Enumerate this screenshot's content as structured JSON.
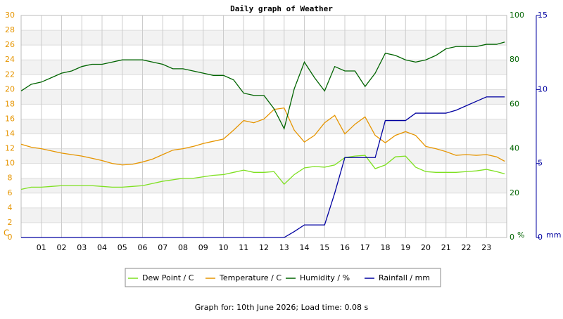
{
  "chart_data": {
    "type": "line",
    "title": "Daily graph of Weather",
    "footer": "Graph for: 10th June 2026; Load time: 0.08 s",
    "y_label": "C",
    "y2_label": "%",
    "y3_label": "mm",
    "x": [
      0,
      0.5,
      1,
      1.5,
      2,
      2.5,
      3,
      3.5,
      4,
      4.5,
      5,
      5.5,
      6,
      6.5,
      7,
      7.5,
      8,
      8.5,
      9,
      9.5,
      10,
      10.5,
      11,
      11.5,
      12,
      12.5,
      13,
      13.5,
      14,
      14.5,
      15,
      15.5,
      16,
      16.5,
      17,
      17.5,
      18,
      18.5,
      19,
      19.5,
      20,
      20.5,
      21,
      21.5,
      22,
      22.5,
      23,
      23.5,
      23.9
    ],
    "xlim": [
      0,
      24
    ],
    "xticks": [
      {
        "value": 1,
        "label": "01"
      },
      {
        "value": 2,
        "label": "02"
      },
      {
        "value": 3,
        "label": "03"
      },
      {
        "value": 4,
        "label": "04"
      },
      {
        "value": 5,
        "label": "05"
      },
      {
        "value": 6,
        "label": "06"
      },
      {
        "value": 7,
        "label": "07"
      },
      {
        "value": 8,
        "label": "08"
      },
      {
        "value": 9,
        "label": "09"
      },
      10,
      11,
      12,
      13,
      14,
      15,
      16,
      17,
      18,
      19,
      20,
      21,
      22,
      23
    ],
    "ylim": [
      0,
      30
    ],
    "yticks": [
      0,
      2,
      4,
      6,
      8,
      10,
      12,
      14,
      16,
      18,
      20,
      22,
      24,
      26,
      28,
      30
    ],
    "y2lim": [
      0,
      100
    ],
    "y2ticks": [
      0,
      20,
      40,
      60,
      80,
      100
    ],
    "y3lim": [
      0,
      15
    ],
    "y3ticks": [
      0,
      5,
      10,
      15
    ],
    "grid": true,
    "series": [
      {
        "name": "Dew Point / C",
        "color": "#7ee020",
        "values": [
          6.5,
          6.8,
          6.8,
          6.9,
          7.0,
          7.0,
          7.0,
          7.0,
          6.9,
          6.8,
          6.8,
          6.9,
          7.0,
          7.3,
          7.6,
          7.8,
          8.0,
          8.0,
          8.2,
          8.4,
          8.5,
          8.8,
          9.1,
          8.8,
          8.8,
          8.9,
          7.2,
          8.5,
          9.4,
          9.6,
          9.5,
          9.8,
          10.8,
          11.0,
          11.1,
          9.3,
          9.8,
          10.9,
          11.0,
          9.5,
          8.9,
          8.8,
          8.8,
          8.8,
          8.9,
          9.0,
          9.2,
          8.9,
          8.6
        ]
      },
      {
        "name": "Temperature / C",
        "color": "#e69500",
        "values": [
          12.6,
          12.2,
          12.0,
          11.7,
          11.4,
          11.2,
          11.0,
          10.7,
          10.4,
          10.0,
          9.8,
          9.9,
          10.2,
          10.6,
          11.2,
          11.8,
          12.0,
          12.3,
          12.7,
          13.0,
          13.3,
          14.5,
          15.8,
          15.5,
          16.0,
          17.3,
          17.5,
          14.5,
          12.9,
          13.8,
          15.5,
          16.5,
          14.0,
          15.3,
          16.3,
          13.8,
          12.8,
          13.8,
          14.3,
          13.8,
          12.3,
          12.0,
          11.6,
          11.1,
          11.2,
          11.1,
          11.2,
          10.9,
          10.3
        ]
      },
      {
        "name": "Humidity / %",
        "color": "#006400",
        "axis": "y2",
        "values": [
          66,
          69,
          70,
          72,
          74,
          75,
          77,
          78,
          78,
          79,
          80,
          80,
          80,
          79,
          78,
          76,
          76,
          75,
          74,
          73,
          73,
          71,
          65,
          64,
          64,
          58,
          49,
          67,
          79,
          72,
          66,
          77,
          75,
          75,
          68,
          74,
          83,
          82,
          80,
          79,
          80,
          82,
          85,
          86,
          86,
          86,
          87,
          87,
          88
        ]
      },
      {
        "name": "Rainfall / mm",
        "color": "#0000a0",
        "axis": "y3",
        "values": [
          0,
          0,
          0,
          0,
          0,
          0,
          0,
          0,
          0,
          0,
          0,
          0,
          0,
          0,
          0,
          0,
          0,
          0,
          0,
          0,
          0,
          0,
          0,
          0,
          0,
          0,
          0,
          0.4,
          0.85,
          0.85,
          0.85,
          3.0,
          5.4,
          5.4,
          5.4,
          5.4,
          7.9,
          7.9,
          7.9,
          8.4,
          8.4,
          8.4,
          8.4,
          8.6,
          8.9,
          9.2,
          9.5,
          9.5,
          9.5
        ]
      }
    ]
  }
}
